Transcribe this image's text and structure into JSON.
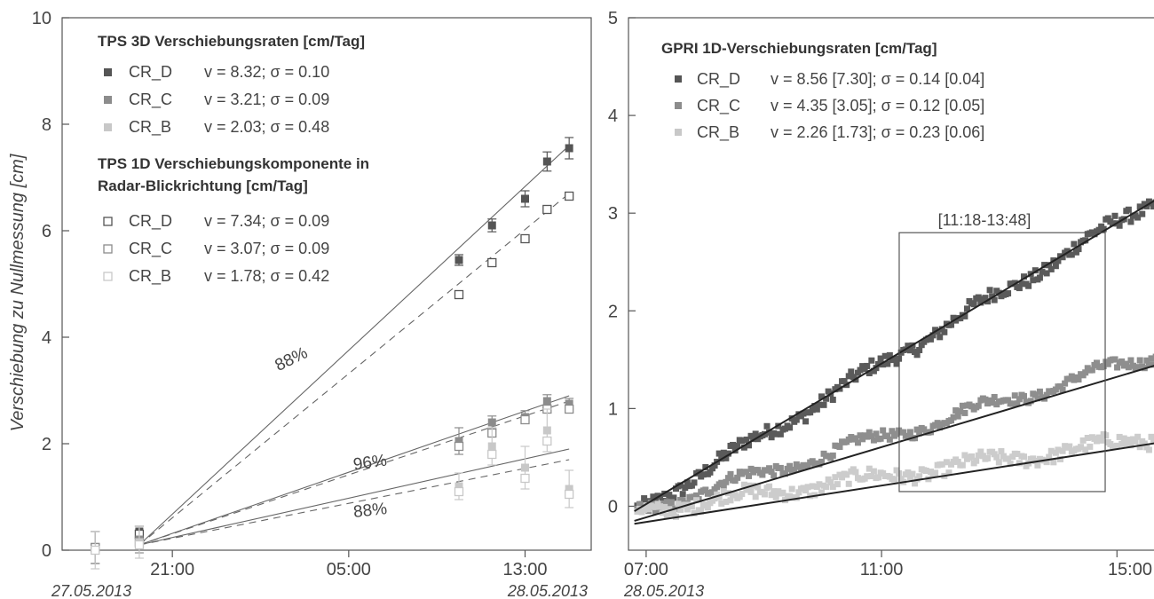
{
  "ylabel": "Verschiebung zu Nullmessung [cm]",
  "chart_data": [
    {
      "type": "scatter",
      "name_hidden": "",
      "ylim": [
        0,
        10
      ],
      "yticks": [
        0,
        2,
        4,
        6,
        8,
        10
      ],
      "x_ticks": [
        {
          "label": "21:00",
          "h": 21
        },
        {
          "label": "05:00",
          "h": 29
        },
        {
          "label": "13:00",
          "h": 37
        }
      ],
      "x_dates": [
        {
          "label": "27.05.2013",
          "align": "left"
        },
        {
          "label": "28.05.2013",
          "align": "right"
        }
      ],
      "legend_tps3d": {
        "title": "TPS 3D Verschiebungsraten [cm/Tag]",
        "entries": [
          {
            "series": "CR_D",
            "text": "v = 8.32; σ = 0.10",
            "color": "#555555",
            "filled": true
          },
          {
            "series": "CR_C",
            "text": "v = 3.21; σ = 0.09",
            "color": "#8c8c8c",
            "filled": true
          },
          {
            "series": "CR_B",
            "text": "v = 2.03; σ = 0.48",
            "color": "#c8c8c8",
            "filled": true
          }
        ]
      },
      "legend_tps1d": {
        "title_line1": "TPS 1D Verschiebungskomponente in",
        "title_line2": "Radar-Blickrichtung [cm/Tag]",
        "entries": [
          {
            "series": "CR_D",
            "text": "v = 7.34; σ = 0.09",
            "color": "#555555",
            "filled": false
          },
          {
            "series": "CR_C",
            "text": "v = 3.07; σ = 0.09",
            "color": "#8c8c8c",
            "filled": false
          },
          {
            "series": "CR_B",
            "text": "v = 1.78; σ = 0.42",
            "color": "#c8c8c8",
            "filled": false
          }
        ]
      },
      "annotations": [
        {
          "text": "88%",
          "x": 26.5,
          "y": 3.5,
          "angle": -26
        },
        {
          "text": "96%",
          "x": 30.0,
          "y": 1.55,
          "angle": -8
        },
        {
          "text": "88%",
          "x": 30.0,
          "y": 0.65,
          "angle": -6
        }
      ],
      "fit_lines": [
        {
          "series": "CR_D",
          "kind": "3D",
          "x": [
            19.5,
            39.0
          ],
          "y": [
            0.1,
            7.6
          ]
        },
        {
          "series": "CR_D",
          "kind": "1D",
          "x": [
            19.5,
            39.0
          ],
          "y": [
            0.1,
            6.7
          ]
        },
        {
          "series": "CR_C",
          "kind": "3D",
          "x": [
            19.5,
            39.0
          ],
          "y": [
            0.1,
            2.9
          ]
        },
        {
          "series": "CR_C",
          "kind": "1D",
          "x": [
            19.5,
            39.0
          ],
          "y": [
            0.1,
            2.8
          ]
        },
        {
          "series": "CR_B",
          "kind": "3D",
          "x": [
            19.5,
            39.0
          ],
          "y": [
            0.1,
            1.9
          ]
        },
        {
          "series": "CR_B",
          "kind": "1D",
          "x": [
            19.5,
            39.0
          ],
          "y": [
            0.1,
            1.7
          ]
        }
      ],
      "points": [
        {
          "series": "CR_D",
          "kind": "3D",
          "x": [
            17.5,
            19.5,
            34.0,
            35.5,
            37.0,
            38.0,
            39.0
          ],
          "y": [
            0.05,
            0.35,
            5.45,
            6.1,
            6.6,
            7.3,
            7.55
          ],
          "err": [
            0.3,
            0.1,
            0.1,
            0.12,
            0.15,
            0.18,
            0.2
          ]
        },
        {
          "series": "CR_D",
          "kind": "1D",
          "x": [
            17.5,
            19.5,
            34.0,
            35.5,
            37.0,
            38.0,
            39.0
          ],
          "y": [
            0.05,
            0.3,
            4.8,
            5.4,
            5.85,
            6.4,
            6.65
          ],
          "err": []
        },
        {
          "series": "CR_C",
          "kind": "3D",
          "x": [
            17.5,
            19.5,
            34.0,
            35.5,
            37.0,
            38.0,
            39.0
          ],
          "y": [
            0.05,
            0.2,
            2.05,
            2.4,
            2.5,
            2.8,
            2.75
          ],
          "err": [
            0.3,
            0.25,
            0.25,
            0.12,
            0.12,
            0.12,
            0.1
          ]
        },
        {
          "series": "CR_C",
          "kind": "1D",
          "x": [
            17.5,
            19.5,
            34.0,
            35.5,
            37.0,
            38.0,
            39.0
          ],
          "y": [
            0.05,
            0.15,
            1.95,
            2.2,
            2.45,
            2.65,
            2.65
          ],
          "err": []
        },
        {
          "series": "CR_B",
          "kind": "3D",
          "x": [
            17.5,
            19.5,
            34.0,
            35.5,
            37.0,
            38.0,
            39.0
          ],
          "y": [
            0.0,
            0.15,
            1.2,
            1.95,
            1.55,
            2.25,
            1.15
          ],
          "err": [
            0.35,
            0.3,
            0.25,
            0.35,
            0.4,
            0.4,
            0.35
          ]
        },
        {
          "series": "CR_B",
          "kind": "1D",
          "x": [
            17.5,
            19.5,
            34.0,
            35.5,
            37.0,
            38.0,
            39.0
          ],
          "y": [
            0.0,
            0.1,
            1.1,
            1.8,
            1.35,
            2.05,
            1.05
          ],
          "err": []
        }
      ]
    },
    {
      "type": "scatter",
      "ylim": [
        0,
        5
      ],
      "yticks": [
        0,
        1,
        2,
        3,
        4,
        5
      ],
      "x_ticks": [
        {
          "label": "07:00",
          "h": 7
        },
        {
          "label": "11:00",
          "h": 11
        },
        {
          "label": "15:00",
          "h": 15
        }
      ],
      "x_dates": [
        {
          "label": "28.05.2013",
          "align": "left"
        }
      ],
      "legend": {
        "title": "GPRI 1D-Verschiebungsraten [cm/Tag]",
        "entries": [
          {
            "series": "CR_D",
            "text": "v = 8.56 [7.30]; σ = 0.14 [0.04]",
            "color": "#555555"
          },
          {
            "series": "CR_C",
            "text": "v = 4.35 [3.05]; σ = 0.12 [0.05]",
            "color": "#8c8c8c"
          },
          {
            "series": "CR_B",
            "text": "v = 2.26 [1.73]; σ = 0.23 [0.06]",
            "color": "#c8c8c8"
          }
        ]
      },
      "window": {
        "label": "[11:18-13:48]",
        "x": [
          11.3,
          14.8
        ],
        "y": [
          0.15,
          2.8
        ]
      },
      "fit_lines": [
        {
          "series": "CR_D",
          "x": [
            6.8,
            15.7
          ],
          "y": [
            -0.05,
            3.15
          ]
        },
        {
          "series": "CR_C",
          "x": [
            6.8,
            15.7
          ],
          "y": [
            -0.15,
            1.45
          ]
        },
        {
          "series": "CR_B",
          "x": [
            6.8,
            15.7
          ],
          "y": [
            -0.18,
            0.65
          ]
        }
      ],
      "series_params": [
        {
          "series": "CR_D",
          "color": "#5a5a5a",
          "x0": 6.85,
          "x1": 15.7,
          "y0": -0.05,
          "y1": 3.15,
          "wave": 0.05,
          "noise": 0.07,
          "n": 230
        },
        {
          "series": "CR_C",
          "color": "#8e8e8e",
          "x0": 6.85,
          "x1": 15.7,
          "y0": -0.05,
          "y1": 1.55,
          "wave": 0.06,
          "noise": 0.05,
          "n": 230
        },
        {
          "series": "CR_B",
          "color": "#cccccc",
          "x0": 6.85,
          "x1": 15.7,
          "y0": -0.05,
          "y1": 0.7,
          "wave": 0.05,
          "noise": 0.07,
          "n": 230
        }
      ]
    }
  ]
}
